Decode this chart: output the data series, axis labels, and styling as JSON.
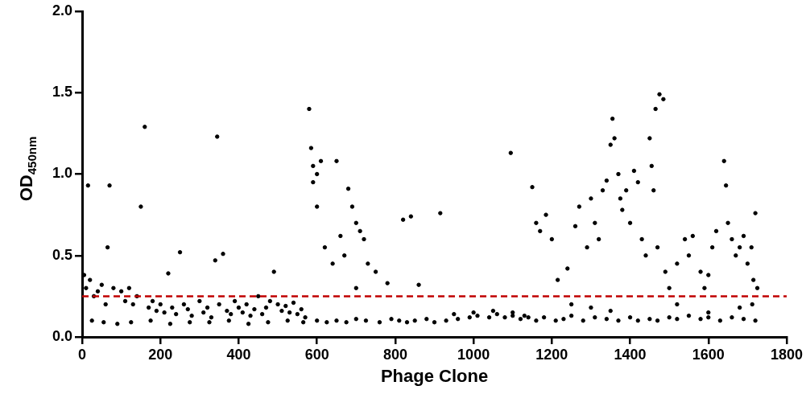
{
  "chart_data": {
    "type": "scatter",
    "xlabel": "Phage Clone",
    "ylabel": "OD$_{450nm}$",
    "xlim": [
      0,
      1800
    ],
    "xticks": [
      0,
      200,
      400,
      600,
      800,
      1000,
      1200,
      1400,
      1600,
      1800
    ],
    "ylim": [
      0,
      2
    ],
    "yticks": [
      {
        "value": 0,
        "label": "0.0"
      },
      {
        "value": 0.5,
        "label": "0.5"
      },
      {
        "value": 1,
        "label": "1.0"
      },
      {
        "value": 1.5,
        "label": "1.5"
      },
      {
        "value": 2,
        "label": "2.0"
      }
    ],
    "marker": "circle",
    "grid": false,
    "legend": false,
    "ref_lines": [
      {
        "axis": "y",
        "value": 0.25,
        "color": "#c00000",
        "line_style": "dashed"
      }
    ],
    "series": [
      {
        "color": "#000000",
        "x": [
          15,
          70,
          65,
          160,
          150,
          250,
          345,
          340,
          360,
          220,
          490,
          580,
          585,
          590,
          600,
          610,
          650,
          590,
          600,
          620,
          640,
          660,
          680,
          690,
          700,
          710,
          720,
          730,
          670,
          700,
          750,
          780,
          820,
          840,
          860,
          915,
          1095,
          1150,
          1160,
          1170,
          1185,
          1200,
          1215,
          1240,
          1260,
          1270,
          1290,
          1300,
          1310,
          1320,
          1330,
          1340,
          1350,
          1355,
          1360,
          1370,
          1375,
          1380,
          1390,
          1400,
          1410,
          1420,
          1430,
          1440,
          1450,
          1455,
          1465,
          1475,
          1485,
          1460,
          1470,
          1490,
          1500,
          1520,
          1540,
          1550,
          1560,
          1580,
          1590,
          1600,
          1610,
          1620,
          1640,
          1645,
          1650,
          1660,
          1670,
          1680,
          1690,
          1700,
          1710,
          1720,
          1715,
          1712,
          1725,
          5,
          10,
          20,
          30,
          40,
          50,
          60,
          80,
          100,
          110,
          120,
          130,
          140,
          170,
          180,
          190,
          200,
          210,
          230,
          240,
          260,
          270,
          280,
          300,
          310,
          320,
          330,
          350,
          370,
          380,
          390,
          400,
          410,
          420,
          430,
          440,
          450,
          460,
          470,
          480,
          500,
          510,
          520,
          530,
          540,
          550,
          560,
          570,
          25,
          55,
          90,
          125,
          175,
          225,
          275,
          325,
          375,
          425,
          475,
          525,
          565,
          600,
          625,
          650,
          675,
          700,
          725,
          760,
          790,
          810,
          830,
          850,
          880,
          900,
          930,
          960,
          990,
          1010,
          1040,
          1060,
          1080,
          1100,
          1120,
          1140,
          1160,
          1180,
          1210,
          1230,
          1250,
          1280,
          1310,
          1340,
          1370,
          1400,
          1420,
          1450,
          1470,
          1500,
          1520,
          1550,
          1580,
          1600,
          1630,
          1660,
          1690,
          1720,
          950,
          1000,
          1050,
          1100,
          1130,
          1250,
          1300,
          1350,
          1520,
          1600,
          1680
        ],
        "values": [
          0.93,
          0.93,
          0.55,
          1.29,
          0.8,
          0.52,
          1.23,
          0.47,
          0.51,
          0.39,
          0.4,
          1.4,
          1.16,
          1.05,
          1.0,
          1.08,
          1.08,
          0.95,
          0.8,
          0.55,
          0.45,
          0.62,
          0.91,
          0.8,
          0.7,
          0.65,
          0.6,
          0.45,
          0.5,
          0.3,
          0.4,
          0.33,
          0.72,
          0.74,
          0.32,
          0.76,
          1.13,
          0.92,
          0.7,
          0.65,
          0.75,
          0.6,
          0.35,
          0.42,
          0.68,
          0.8,
          0.55,
          0.85,
          0.7,
          0.6,
          0.9,
          0.96,
          1.18,
          1.34,
          1.22,
          1.0,
          0.85,
          0.78,
          0.9,
          0.7,
          1.02,
          0.95,
          0.6,
          0.5,
          1.22,
          1.05,
          1.4,
          1.49,
          1.46,
          0.9,
          0.55,
          0.4,
          0.3,
          0.45,
          0.6,
          0.5,
          0.62,
          0.4,
          0.3,
          0.38,
          0.55,
          0.65,
          1.08,
          0.93,
          0.7,
          0.6,
          0.5,
          0.55,
          0.62,
          0.45,
          0.55,
          0.76,
          0.35,
          0.2,
          0.3,
          0.38,
          0.3,
          0.35,
          0.25,
          0.28,
          0.32,
          0.2,
          0.3,
          0.28,
          0.22,
          0.3,
          0.2,
          0.25,
          0.18,
          0.22,
          0.16,
          0.2,
          0.15,
          0.18,
          0.14,
          0.2,
          0.17,
          0.13,
          0.22,
          0.15,
          0.18,
          0.12,
          0.2,
          0.16,
          0.14,
          0.22,
          0.18,
          0.15,
          0.2,
          0.13,
          0.17,
          0.25,
          0.14,
          0.18,
          0.22,
          0.2,
          0.16,
          0.19,
          0.15,
          0.21,
          0.14,
          0.17,
          0.12,
          0.1,
          0.09,
          0.08,
          0.09,
          0.1,
          0.08,
          0.09,
          0.09,
          0.1,
          0.08,
          0.09,
          0.1,
          0.09,
          0.1,
          0.09,
          0.1,
          0.09,
          0.11,
          0.1,
          0.09,
          0.11,
          0.1,
          0.09,
          0.1,
          0.11,
          0.09,
          0.1,
          0.11,
          0.12,
          0.13,
          0.12,
          0.14,
          0.12,
          0.13,
          0.11,
          0.12,
          0.1,
          0.12,
          0.1,
          0.11,
          0.13,
          0.1,
          0.12,
          0.11,
          0.1,
          0.12,
          0.1,
          0.11,
          0.1,
          0.12,
          0.11,
          0.13,
          0.11,
          0.12,
          0.1,
          0.12,
          0.11,
          0.1,
          0.14,
          0.15,
          0.16,
          0.15,
          0.13,
          0.2,
          0.18,
          0.16,
          0.2,
          0.15,
          0.18
        ]
      }
    ]
  }
}
